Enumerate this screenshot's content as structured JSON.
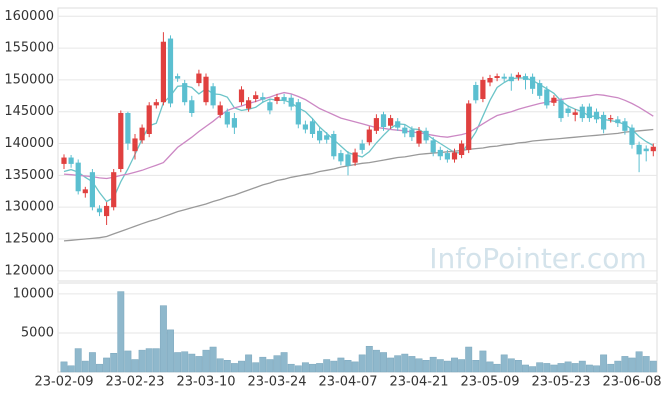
{
  "chart_data": [
    {
      "type": "candlestick",
      "annotation": "InfoPointer.com",
      "up_color": "#e0403f",
      "down_color": "#5bbfd0",
      "ylim": [
        118400,
        161300
      ],
      "yticks": [
        120000,
        125000,
        130000,
        135000,
        140000,
        145000,
        150000,
        155000,
        160000
      ],
      "grid": true,
      "open": [
        136800,
        137800,
        137000,
        132200,
        135500,
        129800,
        128600,
        130000,
        136000,
        144800,
        138800,
        140500,
        141500,
        146000,
        146500,
        156500,
        150600,
        149500,
        146800,
        149500,
        146500,
        149000,
        144500,
        145000,
        144000,
        146500,
        145500,
        147000,
        147300,
        146500,
        146700,
        147300,
        147200,
        146500,
        143000,
        143500,
        142000,
        141300,
        141500,
        138500,
        138300,
        137000,
        140000,
        140200,
        142000,
        144600,
        142800,
        143500,
        142500,
        142200,
        140000,
        142000,
        140500,
        139000,
        138500,
        137500,
        138200,
        139000,
        149200,
        147000,
        149600,
        150300,
        150500,
        150500,
        150400,
        150600,
        150500,
        149500,
        148500,
        146400,
        146800,
        145500,
        144500,
        145800,
        145800,
        145000,
        144500,
        143800,
        143800,
        143500,
        142500,
        139800,
        139200,
        138800
      ],
      "high": [
        138300,
        138200,
        137500,
        133200,
        136000,
        130300,
        130800,
        136000,
        145200,
        145000,
        141500,
        143000,
        146500,
        147000,
        157500,
        157000,
        151000,
        150000,
        147500,
        151600,
        151000,
        149500,
        146600,
        145500,
        144800,
        149000,
        147300,
        148200,
        148000,
        147000,
        147800,
        147800,
        147700,
        147000,
        143600,
        144000,
        142500,
        141800,
        142000,
        139000,
        138800,
        139200,
        140600,
        142700,
        144600,
        145000,
        144500,
        144000,
        143000,
        142700,
        142600,
        142500,
        141000,
        139500,
        139000,
        139200,
        140500,
        146800,
        149700,
        150500,
        150800,
        151000,
        151000,
        151000,
        151200,
        151000,
        151000,
        150000,
        149000,
        147600,
        147200,
        146000,
        145400,
        146200,
        146300,
        145500,
        145000,
        144500,
        144300,
        144000,
        143000,
        140300,
        139700,
        140000
      ],
      "low": [
        136000,
        136200,
        132000,
        131500,
        129500,
        128600,
        127200,
        129500,
        135500,
        139000,
        137500,
        140000,
        141000,
        145500,
        146000,
        145700,
        149700,
        146000,
        144200,
        149000,
        146000,
        145500,
        144000,
        142500,
        141500,
        146000,
        145000,
        146500,
        146400,
        144600,
        146200,
        146200,
        145200,
        142400,
        141600,
        140900,
        140000,
        140000,
        137500,
        136600,
        135000,
        136500,
        138400,
        139700,
        141500,
        142000,
        142300,
        142000,
        141000,
        140400,
        139500,
        140000,
        138000,
        137400,
        137000,
        137000,
        137700,
        138500,
        146300,
        146500,
        149000,
        149800,
        149700,
        148300,
        149900,
        148500,
        147800,
        147000,
        145500,
        145900,
        143400,
        144200,
        143500,
        143400,
        143400,
        143200,
        141600,
        143300,
        142600,
        141400,
        139200,
        135500,
        137200,
        138000
      ],
      "close": [
        137800,
        136800,
        132500,
        132800,
        130000,
        129200,
        130200,
        135500,
        144800,
        140000,
        140800,
        142500,
        146000,
        146500,
        156000,
        146300,
        150200,
        146500,
        144800,
        151000,
        150500,
        146000,
        146000,
        143000,
        142500,
        148500,
        146800,
        147600,
        146900,
        145200,
        147300,
        146800,
        145800,
        143000,
        142200,
        141500,
        140500,
        140600,
        138000,
        137200,
        136500,
        138600,
        139000,
        142200,
        144000,
        142600,
        144000,
        142500,
        141600,
        141000,
        142000,
        140500,
        138600,
        138000,
        137500,
        138600,
        140000,
        146300,
        146800,
        150000,
        150300,
        150600,
        150200,
        149800,
        150800,
        150000,
        148600,
        147500,
        146000,
        147200,
        144000,
        144800,
        144900,
        144000,
        144000,
        143800,
        142200,
        144000,
        143200,
        142000,
        139800,
        138300,
        138800,
        139500
      ],
      "moving_averages": [
        {
          "color": "#6cc4c8",
          "values": [
            135600,
            135900,
            135500,
            134700,
            134000,
            132300,
            130900,
            131500,
            134000,
            136000,
            138300,
            140700,
            142800,
            143200,
            146400,
            147500,
            149000,
            149100,
            148800,
            147800,
            148600,
            147800,
            147700,
            147300,
            145600,
            145200,
            145400,
            145700,
            146500,
            147000,
            146800,
            146800,
            146400,
            145600,
            145000,
            143900,
            142600,
            141600,
            140600,
            139600,
            138600,
            138200,
            137900,
            138700,
            140100,
            141300,
            142400,
            143100,
            143000,
            142300,
            142200,
            141500,
            140700,
            140000,
            139300,
            138600,
            138500,
            140100,
            141800,
            144300,
            146800,
            148800,
            149600,
            150200,
            150300,
            150300,
            149900,
            149300,
            148600,
            147900,
            146700,
            145900,
            145400,
            145000,
            144300,
            144300,
            143800,
            143600,
            143400,
            143000,
            142200,
            141100,
            140300,
            139700
          ]
        },
        {
          "color": "#cc88c4",
          "values": [
            135200,
            135100,
            135000,
            134900,
            134800,
            134600,
            134500,
            134700,
            135000,
            135200,
            135500,
            135800,
            136200,
            136600,
            137000,
            138200,
            139400,
            140200,
            141000,
            141900,
            142700,
            143500,
            144400,
            145200,
            145600,
            145900,
            146300,
            146600,
            147000,
            147300,
            147700,
            148000,
            147800,
            147400,
            146900,
            146200,
            145500,
            145000,
            144500,
            144000,
            143700,
            143400,
            143100,
            142800,
            142500,
            142400,
            142200,
            142100,
            142000,
            141800,
            141700,
            141500,
            141300,
            141100,
            141000,
            141200,
            141400,
            141700,
            142400,
            143100,
            143800,
            144400,
            144700,
            145000,
            145400,
            145700,
            146000,
            146300,
            146500,
            146700,
            146900,
            147100,
            147200,
            147400,
            147500,
            147700,
            147600,
            147400,
            147200,
            146800,
            146300,
            145700,
            145000,
            144300
          ]
        },
        {
          "color": "#9a9a9a",
          "values": [
            124700,
            124800,
            124900,
            125000,
            125100,
            125200,
            125400,
            125800,
            126200,
            126600,
            127000,
            127400,
            127800,
            128100,
            128500,
            128900,
            129300,
            129600,
            129900,
            130200,
            130500,
            130900,
            131200,
            131600,
            131900,
            132300,
            132700,
            133100,
            133500,
            133800,
            134200,
            134400,
            134700,
            134900,
            135100,
            135300,
            135600,
            135800,
            136000,
            136300,
            136500,
            136700,
            136900,
            137000,
            137200,
            137400,
            137600,
            137800,
            137900,
            138100,
            138300,
            138400,
            138500,
            138600,
            138700,
            138800,
            138900,
            139100,
            139200,
            139300,
            139500,
            139600,
            139800,
            139900,
            140100,
            140200,
            140400,
            140500,
            140600,
            140700,
            140800,
            140900,
            141000,
            141100,
            141200,
            141300,
            141400,
            141500,
            141600,
            141800,
            141900,
            142000,
            142100,
            142200
          ]
        }
      ]
    },
    {
      "type": "bar",
      "color": "#8fb8cc",
      "categories": [
        "23-02-09",
        null,
        null,
        null,
        null,
        null,
        null,
        null,
        null,
        null,
        "23-02-23",
        null,
        null,
        null,
        null,
        null,
        null,
        null,
        null,
        null,
        "23-03-10",
        null,
        null,
        null,
        null,
        null,
        null,
        null,
        null,
        null,
        "23-03-24",
        null,
        null,
        null,
        null,
        null,
        null,
        null,
        null,
        null,
        "23-04-07",
        null,
        null,
        null,
        null,
        null,
        null,
        null,
        null,
        null,
        "23-04-21",
        null,
        null,
        null,
        null,
        null,
        null,
        null,
        null,
        null,
        "23-05-09",
        null,
        null,
        null,
        null,
        null,
        null,
        null,
        null,
        null,
        "23-05-23",
        null,
        null,
        null,
        null,
        null,
        null,
        null,
        null,
        null,
        "23-06-08",
        null,
        null,
        null
      ],
      "values": [
        1300,
        800,
        3000,
        1400,
        2500,
        1000,
        1800,
        2400,
        10300,
        2700,
        1600,
        2800,
        3000,
        3000,
        8500,
        5400,
        2500,
        2600,
        2300,
        2000,
        2800,
        3200,
        1700,
        1500,
        1100,
        1400,
        2200,
        1200,
        1900,
        1600,
        2100,
        2500,
        1000,
        800,
        1200,
        1000,
        1100,
        1600,
        1400,
        1800,
        1500,
        1300,
        2200,
        3300,
        2800,
        2500,
        1800,
        2100,
        2300,
        2000,
        1700,
        1500,
        1900,
        1600,
        1400,
        1800,
        1600,
        3200,
        1500,
        2700,
        1300,
        1000,
        2200,
        1700,
        1500,
        900,
        700,
        1200,
        1100,
        900,
        1100,
        1300,
        1100,
        1400,
        900,
        800,
        2200,
        1000,
        1400,
        2000,
        1800,
        2600,
        2000,
        1400
      ],
      "ylim": [
        0,
        11400
      ],
      "yticks": [
        5000,
        10000
      ],
      "grid": true
    }
  ]
}
